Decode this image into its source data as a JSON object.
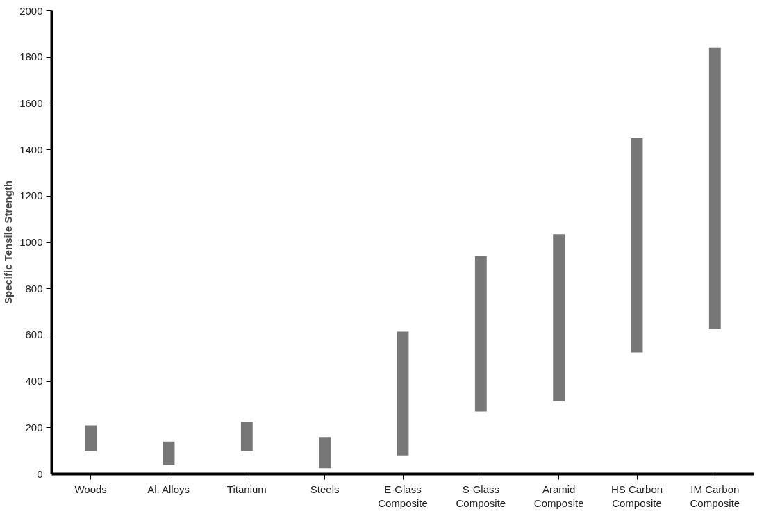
{
  "chart_data": {
    "type": "bar",
    "ylabel": "Specific Tensile Strength",
    "categories": [
      "Woods",
      "Al. Alloys",
      "Titanium",
      "Steels",
      "E-Glass\nComposite",
      "S-Glass\nComposite",
      "Aramid\nComposite",
      "HS Carbon\nComposite",
      "IM Carbon\nComposite"
    ],
    "base": [
      100,
      40,
      100,
      25,
      80,
      270,
      315,
      525,
      625
    ],
    "values": [
      110,
      100,
      125,
      135,
      535,
      670,
      720,
      925,
      1215
    ],
    "color": "#777777",
    "ylim": [
      0,
      2000
    ],
    "yticks": [
      0,
      200,
      400,
      600,
      800,
      1000,
      1200,
      1400,
      1600,
      1800,
      2000
    ],
    "grid": false
  }
}
